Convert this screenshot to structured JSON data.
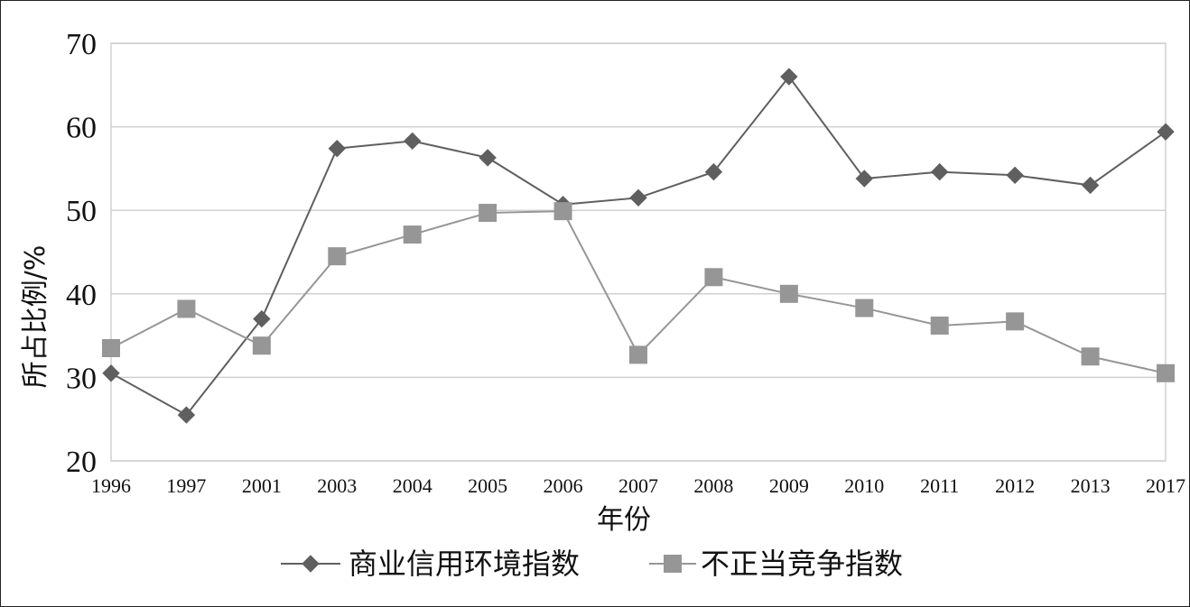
{
  "chart_data": {
    "type": "line",
    "xlabel": "年份",
    "ylabel": "所占比例/%",
    "categories": [
      "1996",
      "1997",
      "2001",
      "2003",
      "2004",
      "2005",
      "2006",
      "2007",
      "2008",
      "2009",
      "2010",
      "2011",
      "2012",
      "2013",
      "2017"
    ],
    "ylim": [
      20,
      70
    ],
    "yticks": [
      "20",
      "30",
      "40",
      "50",
      "60",
      "70"
    ],
    "grid": true,
    "legend_position": "bottom",
    "series": [
      {
        "name": "商业信用环境指数",
        "marker": "diamond",
        "color": "#5f5f5f",
        "values": [
          30.5,
          25.5,
          37.0,
          57.4,
          58.3,
          56.3,
          50.7,
          51.5,
          54.6,
          66.0,
          53.8,
          54.6,
          54.2,
          53.0,
          59.4
        ]
      },
      {
        "name": "不正当竞争指数",
        "marker": "square",
        "color": "#969696",
        "values": [
          33.5,
          38.2,
          33.8,
          44.5,
          47.1,
          49.7,
          49.9,
          32.7,
          42.0,
          40.0,
          38.3,
          36.2,
          36.7,
          32.5,
          30.5
        ]
      }
    ]
  }
}
